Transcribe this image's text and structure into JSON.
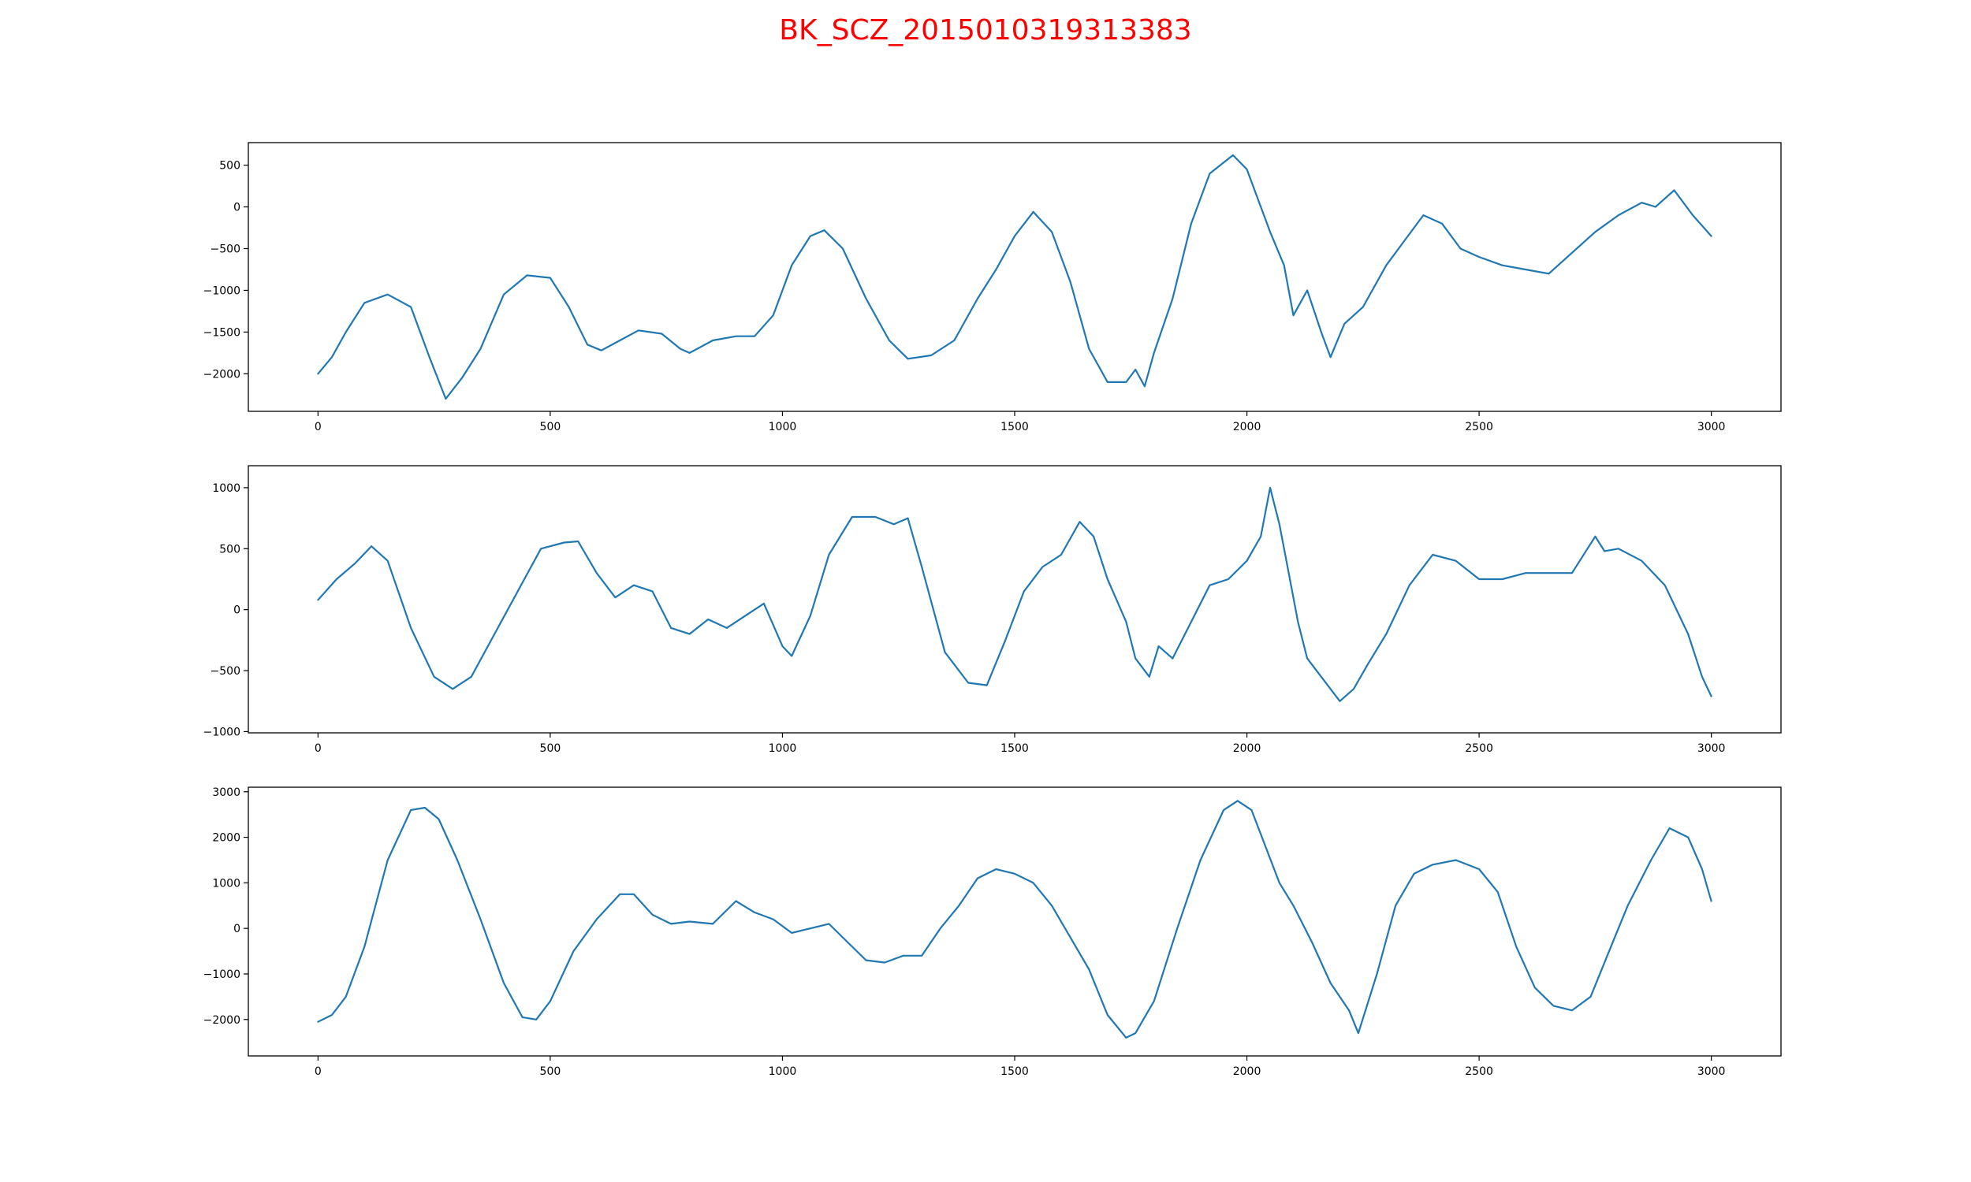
{
  "title": "BK_SCZ_2015010319313383",
  "chart_data": [
    {
      "type": "line",
      "xlim": [
        -150,
        3150
      ],
      "ylim": [
        -2450,
        770
      ],
      "xticks": [
        0,
        500,
        1000,
        1500,
        2000,
        2500,
        3000
      ],
      "xtick_labels": [
        "0",
        "500",
        "1000",
        "1500",
        "2000",
        "2500",
        "3000"
      ],
      "yticks": [
        -2000,
        -1500,
        -1000,
        -500,
        0,
        500
      ],
      "ytick_labels": [
        "−2000",
        "−1500",
        "−1000",
        "−500",
        "0",
        "500"
      ],
      "grid": false,
      "series": [
        {
          "color": "#1f77b4",
          "x": [
            0,
            30,
            60,
            100,
            150,
            200,
            240,
            275,
            310,
            350,
            400,
            450,
            500,
            540,
            580,
            610,
            650,
            690,
            740,
            780,
            800,
            850,
            900,
            940,
            980,
            1020,
            1060,
            1090,
            1130,
            1180,
            1230,
            1270,
            1320,
            1370,
            1420,
            1460,
            1500,
            1540,
            1580,
            1620,
            1660,
            1700,
            1740,
            1760,
            1780,
            1800,
            1840,
            1880,
            1920,
            1970,
            2000,
            2030,
            2050,
            2080,
            2100,
            2130,
            2160,
            2180,
            2210,
            2250,
            2300,
            2340,
            2380,
            2420,
            2460,
            2500,
            2550,
            2600,
            2650,
            2700,
            2750,
            2800,
            2850,
            2880,
            2920,
            2960,
            3000
          ],
          "y": [
            -2000,
            -1800,
            -1500,
            -1150,
            -1050,
            -1200,
            -1800,
            -2300,
            -2050,
            -1700,
            -1050,
            -820,
            -850,
            -1200,
            -1650,
            -1720,
            -1600,
            -1480,
            -1520,
            -1700,
            -1750,
            -1600,
            -1550,
            -1550,
            -1300,
            -700,
            -350,
            -280,
            -500,
            -1100,
            -1600,
            -1820,
            -1780,
            -1600,
            -1100,
            -750,
            -350,
            -60,
            -300,
            -900,
            -1700,
            -2100,
            -2100,
            -1950,
            -2150,
            -1750,
            -1100,
            -200,
            400,
            620,
            450,
            0,
            -300,
            -700,
            -1300,
            -1000,
            -1500,
            -1800,
            -1400,
            -1200,
            -700,
            -400,
            -100,
            -200,
            -500,
            -600,
            -700,
            -750,
            -800,
            -550,
            -300,
            -100,
            50,
            0,
            200,
            -100,
            -350
          ]
        }
      ]
    },
    {
      "type": "line",
      "xlim": [
        -150,
        3150
      ],
      "ylim": [
        -1010,
        1180
      ],
      "xticks": [
        0,
        500,
        1000,
        1500,
        2000,
        2500,
        3000
      ],
      "xtick_labels": [
        "0",
        "500",
        "1000",
        "1500",
        "2000",
        "2500",
        "3000"
      ],
      "yticks": [
        -1000,
        -500,
        0,
        500,
        1000
      ],
      "ytick_labels": [
        "−1000",
        "−500",
        "0",
        "500",
        "1000"
      ],
      "grid": false,
      "series": [
        {
          "color": "#1f77b4",
          "x": [
            0,
            40,
            80,
            115,
            150,
            200,
            250,
            290,
            330,
            380,
            430,
            480,
            530,
            560,
            600,
            640,
            680,
            720,
            760,
            800,
            840,
            880,
            920,
            960,
            1000,
            1020,
            1060,
            1100,
            1150,
            1200,
            1240,
            1270,
            1300,
            1350,
            1400,
            1440,
            1480,
            1520,
            1560,
            1600,
            1640,
            1670,
            1700,
            1740,
            1760,
            1790,
            1810,
            1840,
            1880,
            1920,
            1960,
            2000,
            2030,
            2050,
            2070,
            2090,
            2110,
            2130,
            2150,
            2180,
            2200,
            2230,
            2260,
            2300,
            2350,
            2400,
            2450,
            2500,
            2550,
            2600,
            2650,
            2700,
            2750,
            2770,
            2800,
            2850,
            2900,
            2950,
            2980,
            3000
          ],
          "y": [
            80,
            250,
            380,
            520,
            400,
            -150,
            -550,
            -650,
            -550,
            -200,
            150,
            500,
            550,
            560,
            300,
            100,
            200,
            150,
            -150,
            -200,
            -80,
            -150,
            -50,
            50,
            -300,
            -380,
            -50,
            450,
            760,
            760,
            700,
            750,
            350,
            -350,
            -600,
            -620,
            -250,
            150,
            350,
            450,
            720,
            600,
            250,
            -100,
            -400,
            -550,
            -300,
            -400,
            -100,
            200,
            250,
            400,
            600,
            1000,
            700,
            300,
            -100,
            -400,
            -500,
            -650,
            -750,
            -650,
            -450,
            -200,
            200,
            450,
            400,
            250,
            250,
            300,
            300,
            300,
            600,
            480,
            500,
            400,
            200,
            -200,
            -550,
            -710
          ]
        }
      ]
    },
    {
      "type": "line",
      "xlim": [
        -150,
        3150
      ],
      "ylim": [
        -2800,
        3100
      ],
      "xticks": [
        0,
        500,
        1000,
        1500,
        2000,
        2500,
        3000
      ],
      "xtick_labels": [
        "0",
        "500",
        "1000",
        "1500",
        "2000",
        "2500",
        "3000"
      ],
      "yticks": [
        -2000,
        -1000,
        0,
        1000,
        2000,
        3000
      ],
      "ytick_labels": [
        "−2000",
        "−1000",
        "0",
        "1000",
        "2000",
        "3000"
      ],
      "grid": false,
      "series": [
        {
          "color": "#1f77b4",
          "x": [
            0,
            30,
            60,
            100,
            150,
            200,
            230,
            260,
            300,
            350,
            400,
            440,
            470,
            500,
            550,
            600,
            650,
            680,
            720,
            760,
            800,
            850,
            900,
            940,
            980,
            1020,
            1060,
            1100,
            1140,
            1180,
            1220,
            1260,
            1300,
            1340,
            1380,
            1420,
            1460,
            1500,
            1540,
            1580,
            1620,
            1660,
            1700,
            1740,
            1760,
            1800,
            1850,
            1900,
            1950,
            1980,
            2010,
            2040,
            2070,
            2100,
            2140,
            2180,
            2220,
            2240,
            2280,
            2320,
            2360,
            2400,
            2450,
            2500,
            2540,
            2580,
            2620,
            2660,
            2700,
            2740,
            2780,
            2820,
            2870,
            2910,
            2950,
            2980,
            3000
          ],
          "y": [
            -2050,
            -1900,
            -1500,
            -400,
            1500,
            2600,
            2650,
            2400,
            1500,
            200,
            -1200,
            -1950,
            -2000,
            -1600,
            -500,
            200,
            750,
            750,
            300,
            100,
            150,
            100,
            600,
            350,
            200,
            -100,
            0,
            100,
            -300,
            -700,
            -750,
            -600,
            -600,
            0,
            500,
            1100,
            1300,
            1200,
            1000,
            500,
            -200,
            -900,
            -1900,
            -2400,
            -2300,
            -1600,
            0,
            1500,
            2600,
            2800,
            2600,
            1800,
            1000,
            500,
            -300,
            -1200,
            -1800,
            -2300,
            -1000,
            500,
            1200,
            1400,
            1500,
            1300,
            800,
            -400,
            -1300,
            -1700,
            -1800,
            -1500,
            -500,
            500,
            1500,
            2200,
            2000,
            1300,
            600
          ]
        }
      ]
    }
  ]
}
